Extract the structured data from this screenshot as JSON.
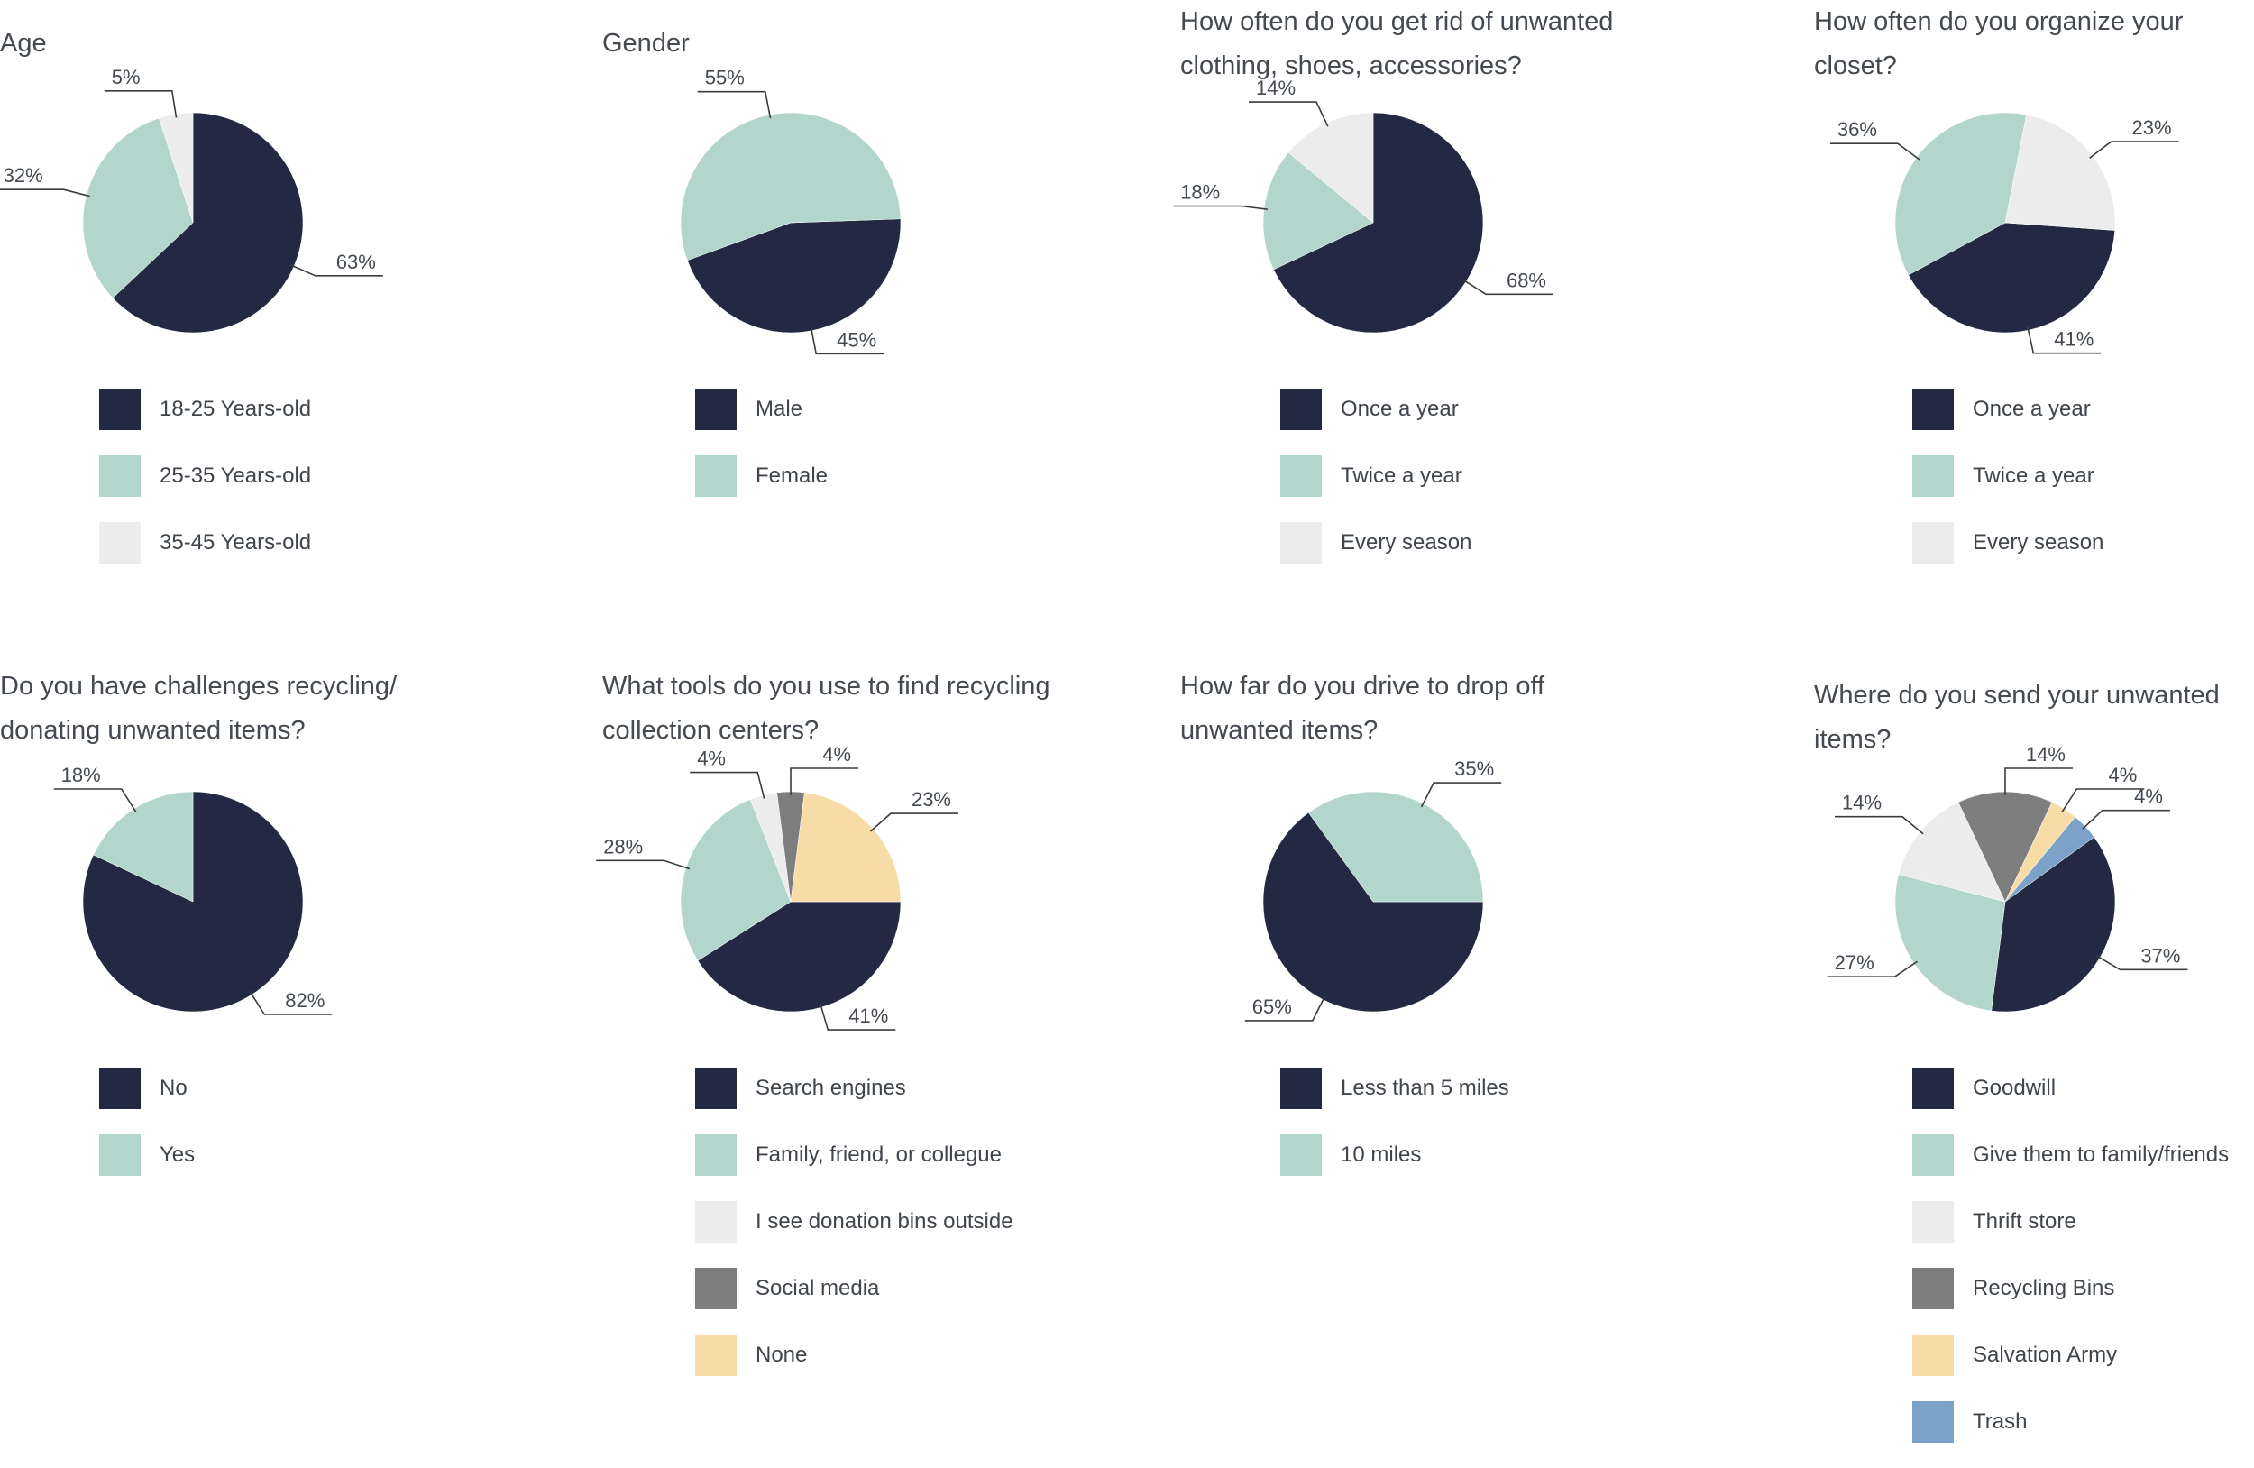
{
  "colors": {
    "navy": "#242943",
    "mint": "#b2d6cb",
    "light": "#ececec",
    "gray": "#7e7e7e",
    "tan": "#f7dca8",
    "blue": "#7ca2c9",
    "text": "#444a50",
    "leader": "#3c3c3c"
  },
  "chart_data": [
    {
      "type": "pie",
      "title": "Age",
      "categories": [
        "18-25 Years-old",
        "25-35 Years-old",
        "35-45 Years-old"
      ],
      "values": [
        63,
        32,
        5
      ],
      "labels": [
        "63%",
        "32%",
        "5%"
      ],
      "colors": [
        "#242943",
        "#b2d6cb",
        "#ececec"
      ],
      "legend": "bottom"
    },
    {
      "type": "pie",
      "title": "Gender",
      "categories": [
        "Male",
        "Female"
      ],
      "values": [
        45,
        55
      ],
      "labels": [
        "45%",
        "55%"
      ],
      "colors": [
        "#242943",
        "#b2d6cb"
      ],
      "legend": "bottom"
    },
    {
      "type": "pie",
      "title": "How often do you get rid of unwanted clothing, shoes, accessories?",
      "title_lines": [
        "How often do you get rid of unwanted",
        "clothing, shoes, accessories?"
      ],
      "categories": [
        "Once a year",
        "Twice a year",
        "Every season"
      ],
      "values": [
        68,
        18,
        14
      ],
      "labels": [
        "68%",
        "18%",
        "14%"
      ],
      "colors": [
        "#242943",
        "#b2d6cb",
        "#ececec"
      ],
      "legend": "bottom"
    },
    {
      "type": "pie",
      "title": "How often do you organize your closet?",
      "title_lines": [
        "How often do you organize your",
        "closet?"
      ],
      "categories": [
        "Once a year",
        "Twice a year",
        "Every season"
      ],
      "values": [
        41,
        36,
        23
      ],
      "labels": [
        "41%",
        "36%",
        "23%"
      ],
      "colors": [
        "#242943",
        "#b2d6cb",
        "#ececec"
      ],
      "legend": "bottom"
    },
    {
      "type": "pie",
      "title": "Do you have challenges recycling/ donating unwanted items?",
      "title_lines": [
        "Do you have challenges recycling/",
        "donating unwanted items?"
      ],
      "categories": [
        "No",
        "Yes"
      ],
      "values": [
        82,
        18
      ],
      "labels": [
        "82%",
        "18%"
      ],
      "colors": [
        "#242943",
        "#b2d6cb"
      ],
      "legend": "bottom"
    },
    {
      "type": "pie",
      "title": "What tools do you use to find recycling collection centers?",
      "title_lines": [
        "What tools do you use to find recycling",
        "collection centers?"
      ],
      "categories": [
        "Search engines",
        "Family, friend, or collegue",
        "I see donation bins outside",
        "Social media",
        "None"
      ],
      "values": [
        41,
        28,
        4,
        4,
        23
      ],
      "labels": [
        "41%",
        "28%",
        "4%",
        "4%",
        "23%"
      ],
      "colors": [
        "#242943",
        "#b2d6cb",
        "#ececec",
        "#7e7e7e",
        "#f7dca8"
      ],
      "legend": "bottom"
    },
    {
      "type": "pie",
      "title": "How far do you drive to drop off unwanted items?",
      "title_lines": [
        "How far do you drive to drop off",
        "unwanted items?"
      ],
      "categories": [
        "Less than 5 miles",
        "10 miles"
      ],
      "values": [
        65,
        35
      ],
      "labels": [
        "65%",
        "35%"
      ],
      "colors": [
        "#242943",
        "#b2d6cb"
      ],
      "legend": "bottom"
    },
    {
      "type": "pie",
      "title": "Where do you send your unwanted items?",
      "title_lines": [
        "Where do you send your unwanted",
        "items?"
      ],
      "categories": [
        "Goodwill",
        "Give them to family/friends",
        "Thrift store",
        "Recycling Bins",
        "Salvation Army",
        "Trash"
      ],
      "values": [
        37,
        27,
        14,
        14,
        4,
        4
      ],
      "labels": [
        "37%",
        "27%",
        "14%",
        "14%",
        "4%",
        "4%"
      ],
      "colors": [
        "#242943",
        "#b2d6cb",
        "#ececec",
        "#7e7e7e",
        "#f7dca8",
        "#7ca2c9"
      ],
      "legend": "bottom"
    }
  ]
}
